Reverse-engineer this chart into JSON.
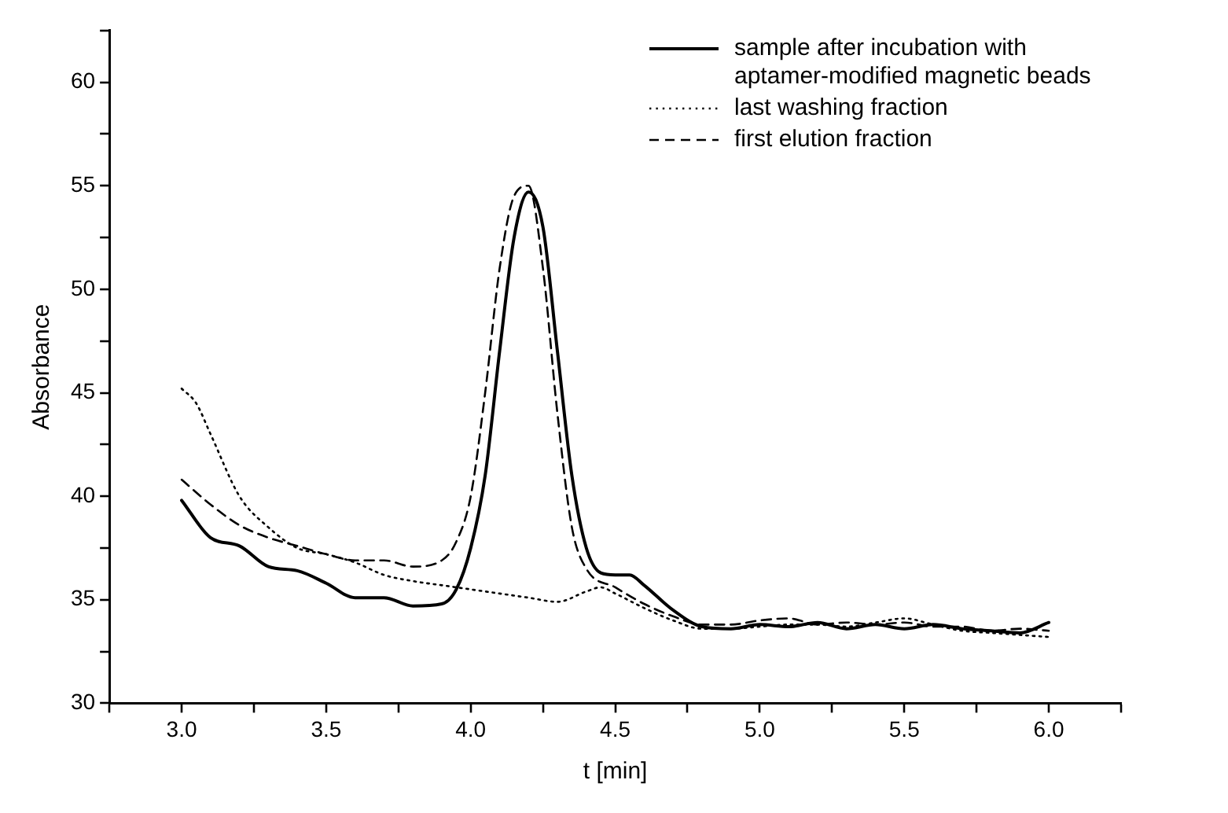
{
  "chart_data": {
    "type": "line",
    "xlabel": "t [min]",
    "ylabel": "Absorbance",
    "xlim": [
      2.75,
      6.25
    ],
    "ylim": [
      30,
      62.5
    ],
    "xticks": [
      {
        "value": 2.75,
        "label": null
      },
      {
        "value": 3,
        "label": "3.0"
      },
      {
        "value": 3.25,
        "label": null
      },
      {
        "value": 3.5,
        "label": "3.5"
      },
      {
        "value": 3.75,
        "label": null
      },
      {
        "value": 4,
        "label": "4.0"
      },
      {
        "value": 4.25,
        "label": null
      },
      {
        "value": 4.5,
        "label": "4.5"
      },
      {
        "value": 4.75,
        "label": null
      },
      {
        "value": 5,
        "label": "5.0"
      },
      {
        "value": 5.25,
        "label": null
      },
      {
        "value": 5.5,
        "label": "5.5"
      },
      {
        "value": 5.75,
        "label": null
      },
      {
        "value": 6,
        "label": "6.0"
      },
      {
        "value": 6.25,
        "label": null
      }
    ],
    "yticks": [
      30,
      {
        "value": 32.5,
        "label": null
      },
      35,
      {
        "value": 37.5,
        "label": null
      },
      40,
      {
        "value": 42.5,
        "label": null
      },
      45,
      {
        "value": 47.5,
        "label": null
      },
      50,
      {
        "value": 52.5,
        "label": null
      },
      55,
      {
        "value": 57.5,
        "label": null
      },
      60,
      {
        "value": 62.5,
        "label": null
      }
    ],
    "grid": false,
    "legend": "top right",
    "marker": "none",
    "series": [
      {
        "name": "sample after incubation with aptamer-modified magnetic beads",
        "color": "#000000",
        "line_style": "solid",
        "x": [
          3.0,
          3.1,
          3.2,
          3.3,
          3.4,
          3.5,
          3.6,
          3.7,
          3.8,
          3.9,
          3.95,
          4.0,
          4.05,
          4.1,
          4.15,
          4.2,
          4.25,
          4.3,
          4.35,
          4.4,
          4.45,
          4.5,
          4.55,
          4.6,
          4.7,
          4.8,
          4.9,
          5.0,
          5.1,
          5.2,
          5.3,
          5.4,
          5.5,
          5.6,
          5.7,
          5.8,
          5.9,
          6.0
        ],
        "values": [
          39.8,
          38.0,
          37.6,
          36.6,
          36.4,
          35.8,
          35.1,
          35.1,
          34.7,
          34.8,
          35.5,
          37.5,
          41,
          47,
          52.5,
          54.7,
          53,
          47,
          41,
          37.5,
          36.3,
          36.2,
          36.2,
          35.7,
          34.5,
          33.7,
          33.6,
          33.8,
          33.7,
          33.9,
          33.6,
          33.8,
          33.6,
          33.8,
          33.6,
          33.5,
          33.4,
          33.9
        ]
      },
      {
        "name": "last washing fraction",
        "color": "#000000",
        "line_style": "dotted",
        "x": [
          3.0,
          3.05,
          3.1,
          3.2,
          3.3,
          3.4,
          3.5,
          3.6,
          3.7,
          3.8,
          3.9,
          4.0,
          4.1,
          4.2,
          4.3,
          4.4,
          4.45,
          4.5,
          4.6,
          4.7,
          4.8,
          4.9,
          5.0,
          5.1,
          5.2,
          5.3,
          5.4,
          5.5,
          5.6,
          5.7,
          5.8,
          5.9,
          6.0
        ],
        "values": [
          45.2,
          44.5,
          43,
          40,
          38.5,
          37.5,
          37.2,
          36.8,
          36.2,
          35.9,
          35.7,
          35.5,
          35.3,
          35.1,
          34.9,
          35.4,
          35.6,
          35.3,
          34.6,
          34.0,
          33.6,
          33.6,
          33.7,
          33.8,
          33.8,
          33.7,
          33.9,
          34.1,
          33.8,
          33.5,
          33.4,
          33.3,
          33.2
        ]
      },
      {
        "name": "first elution fraction",
        "color": "#000000",
        "line_style": "dashed",
        "x": [
          3.0,
          3.1,
          3.2,
          3.3,
          3.4,
          3.5,
          3.6,
          3.7,
          3.8,
          3.9,
          3.95,
          4.0,
          4.05,
          4.1,
          4.15,
          4.2,
          4.25,
          4.3,
          4.35,
          4.4,
          4.5,
          4.6,
          4.7,
          4.8,
          4.9,
          5.0,
          5.1,
          5.2,
          5.3,
          5.4,
          5.5,
          5.6,
          5.7,
          5.8,
          5.9,
          6.0
        ],
        "values": [
          40.8,
          39.6,
          38.6,
          38.0,
          37.6,
          37.2,
          36.9,
          36.9,
          36.6,
          36.9,
          37.8,
          40,
          45,
          51,
          54.5,
          55,
          51,
          44,
          38.5,
          36.5,
          35.6,
          34.8,
          34.2,
          33.8,
          33.8,
          34.0,
          34.1,
          33.8,
          33.9,
          33.8,
          33.9,
          33.7,
          33.7,
          33.5,
          33.6,
          33.5
        ]
      }
    ]
  }
}
